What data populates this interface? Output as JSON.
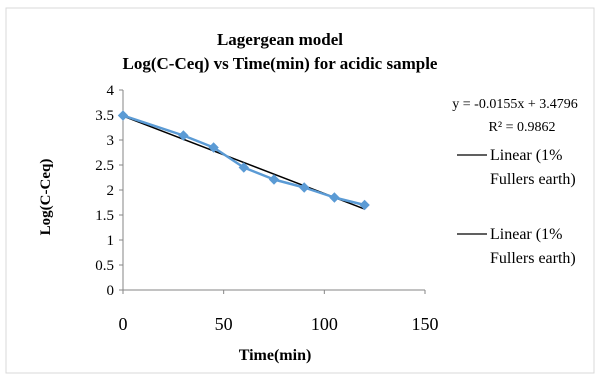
{
  "chart_data": {
    "type": "scatter",
    "title": "Lagergean model",
    "subtitle": "Log(C-Ceq) vs Time(min) for acidic sample",
    "xlabel": "Time(min)",
    "ylabel": "Log(C-Ceq)",
    "xlim": [
      0,
      150
    ],
    "ylim": [
      0,
      4
    ],
    "x_ticks": [
      "0",
      "50",
      "100",
      "150"
    ],
    "y_ticks": [
      "0",
      "0.5",
      "1",
      "1.5",
      "2",
      "2.5",
      "3",
      "3.5",
      "4"
    ],
    "grid": false,
    "series": [
      {
        "color": "#5b9bd5",
        "marker": "diamond",
        "x": [
          0,
          30,
          45,
          60,
          75,
          90,
          105,
          120
        ],
        "y": [
          3.49,
          3.09,
          2.85,
          2.45,
          2.21,
          2.05,
          1.85,
          1.7
        ]
      }
    ],
    "trendline": {
      "color": "#000000",
      "slope": -0.0155,
      "intercept": 3.4796,
      "x_range": [
        0,
        120
      ]
    },
    "equation_text": "y = -0.0155x + 3.4796",
    "r2_text": "R² = 0.9862",
    "legend": {
      "placement": "right",
      "entries": [
        {
          "line1": "Linear (1%",
          "line2": "Fullers earth)",
          "color": "#000000"
        },
        {
          "line1": "Linear (1%",
          "line2": "Fullers earth)",
          "color": "#000000"
        }
      ]
    }
  }
}
